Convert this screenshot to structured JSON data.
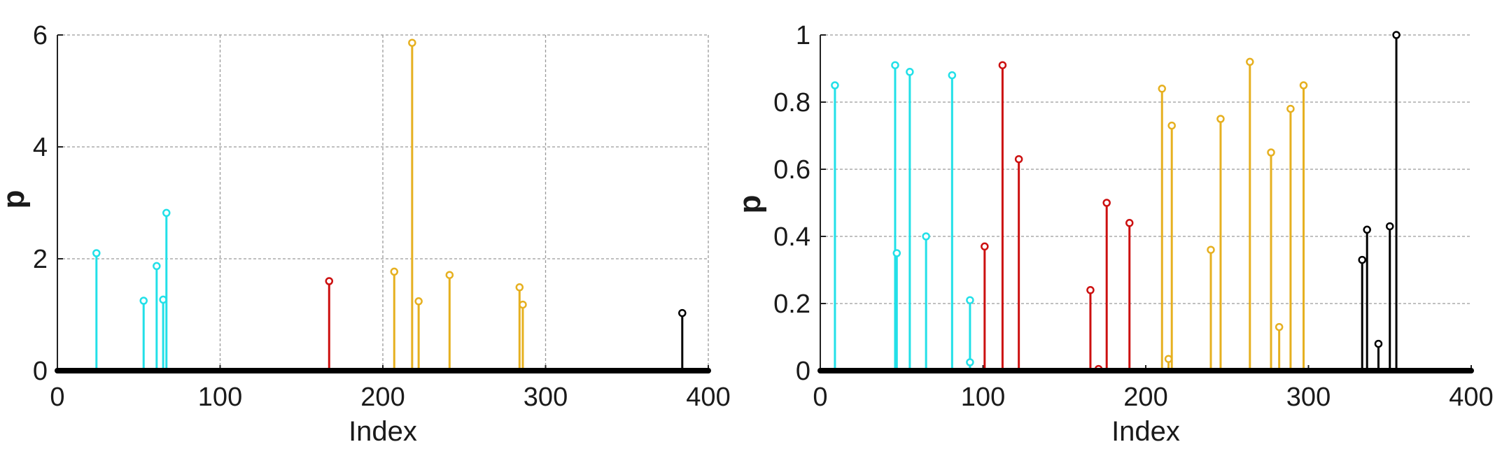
{
  "chart_data": [
    {
      "type": "stem",
      "xlabel": "Index",
      "ylabel": "p",
      "xlim": [
        0,
        400
      ],
      "ylim": [
        0,
        6
      ],
      "xticks": [
        0,
        100,
        200,
        300,
        400
      ],
      "yticks": [
        0,
        2,
        4,
        6
      ],
      "grid": "full",
      "series": [
        {
          "color": "#22e0e8",
          "points": [
            [
              24,
              2.1
            ],
            [
              53,
              1.25
            ],
            [
              61,
              1.87
            ],
            [
              65,
              1.27
            ],
            [
              67,
              2.82
            ]
          ]
        },
        {
          "color": "#cc1010",
          "points": [
            [
              167,
              1.6
            ]
          ]
        },
        {
          "color": "#e6b020",
          "points": [
            [
              207,
              1.77
            ],
            [
              218,
              5.86
            ],
            [
              222,
              1.24
            ],
            [
              241,
              1.71
            ],
            [
              284,
              1.49
            ],
            [
              286,
              1.18
            ]
          ]
        },
        {
          "color": "#000000",
          "points": [
            [
              384,
              1.03
            ]
          ]
        }
      ]
    },
    {
      "type": "stem",
      "xlabel": "Index",
      "ylabel": "p",
      "xlim": [
        0,
        400
      ],
      "ylim": [
        0,
        1
      ],
      "xticks": [
        0,
        100,
        200,
        300,
        400
      ],
      "yticks": [
        0,
        0.2,
        0.4,
        0.6,
        0.8,
        1
      ],
      "ytick_labels": [
        "0",
        "0.2",
        "0.4",
        "0.6",
        "0.8",
        "1"
      ],
      "grid": "horizontal",
      "series": [
        {
          "color": "#22e0e8",
          "points": [
            [
              9,
              0.85
            ],
            [
              46,
              0.91
            ],
            [
              47,
              0.35
            ],
            [
              55,
              0.89
            ],
            [
              65,
              0.4
            ],
            [
              81,
              0.88
            ],
            [
              92,
              0.21
            ],
            [
              92,
              0.025
            ]
          ]
        },
        {
          "color": "#cc1010",
          "points": [
            [
              101,
              0.37
            ],
            [
              112,
              0.91
            ],
            [
              122,
              0.63
            ],
            [
              166,
              0.24
            ],
            [
              171,
              0.005
            ],
            [
              176,
              0.5
            ],
            [
              190,
              0.44
            ]
          ]
        },
        {
          "color": "#e6b020",
          "points": [
            [
              210,
              0.84
            ],
            [
              214,
              0.035
            ],
            [
              216,
              0.73
            ],
            [
              240,
              0.36
            ],
            [
              246,
              0.75
            ],
            [
              264,
              0.92
            ],
            [
              277,
              0.65
            ],
            [
              282,
              0.13
            ],
            [
              289,
              0.78
            ],
            [
              297,
              0.85
            ]
          ]
        },
        {
          "color": "#000000",
          "points": [
            [
              333,
              0.33
            ],
            [
              336,
              0.42
            ],
            [
              343,
              0.08
            ],
            [
              350,
              0.43
            ],
            [
              354,
              1.0
            ]
          ]
        }
      ]
    }
  ]
}
